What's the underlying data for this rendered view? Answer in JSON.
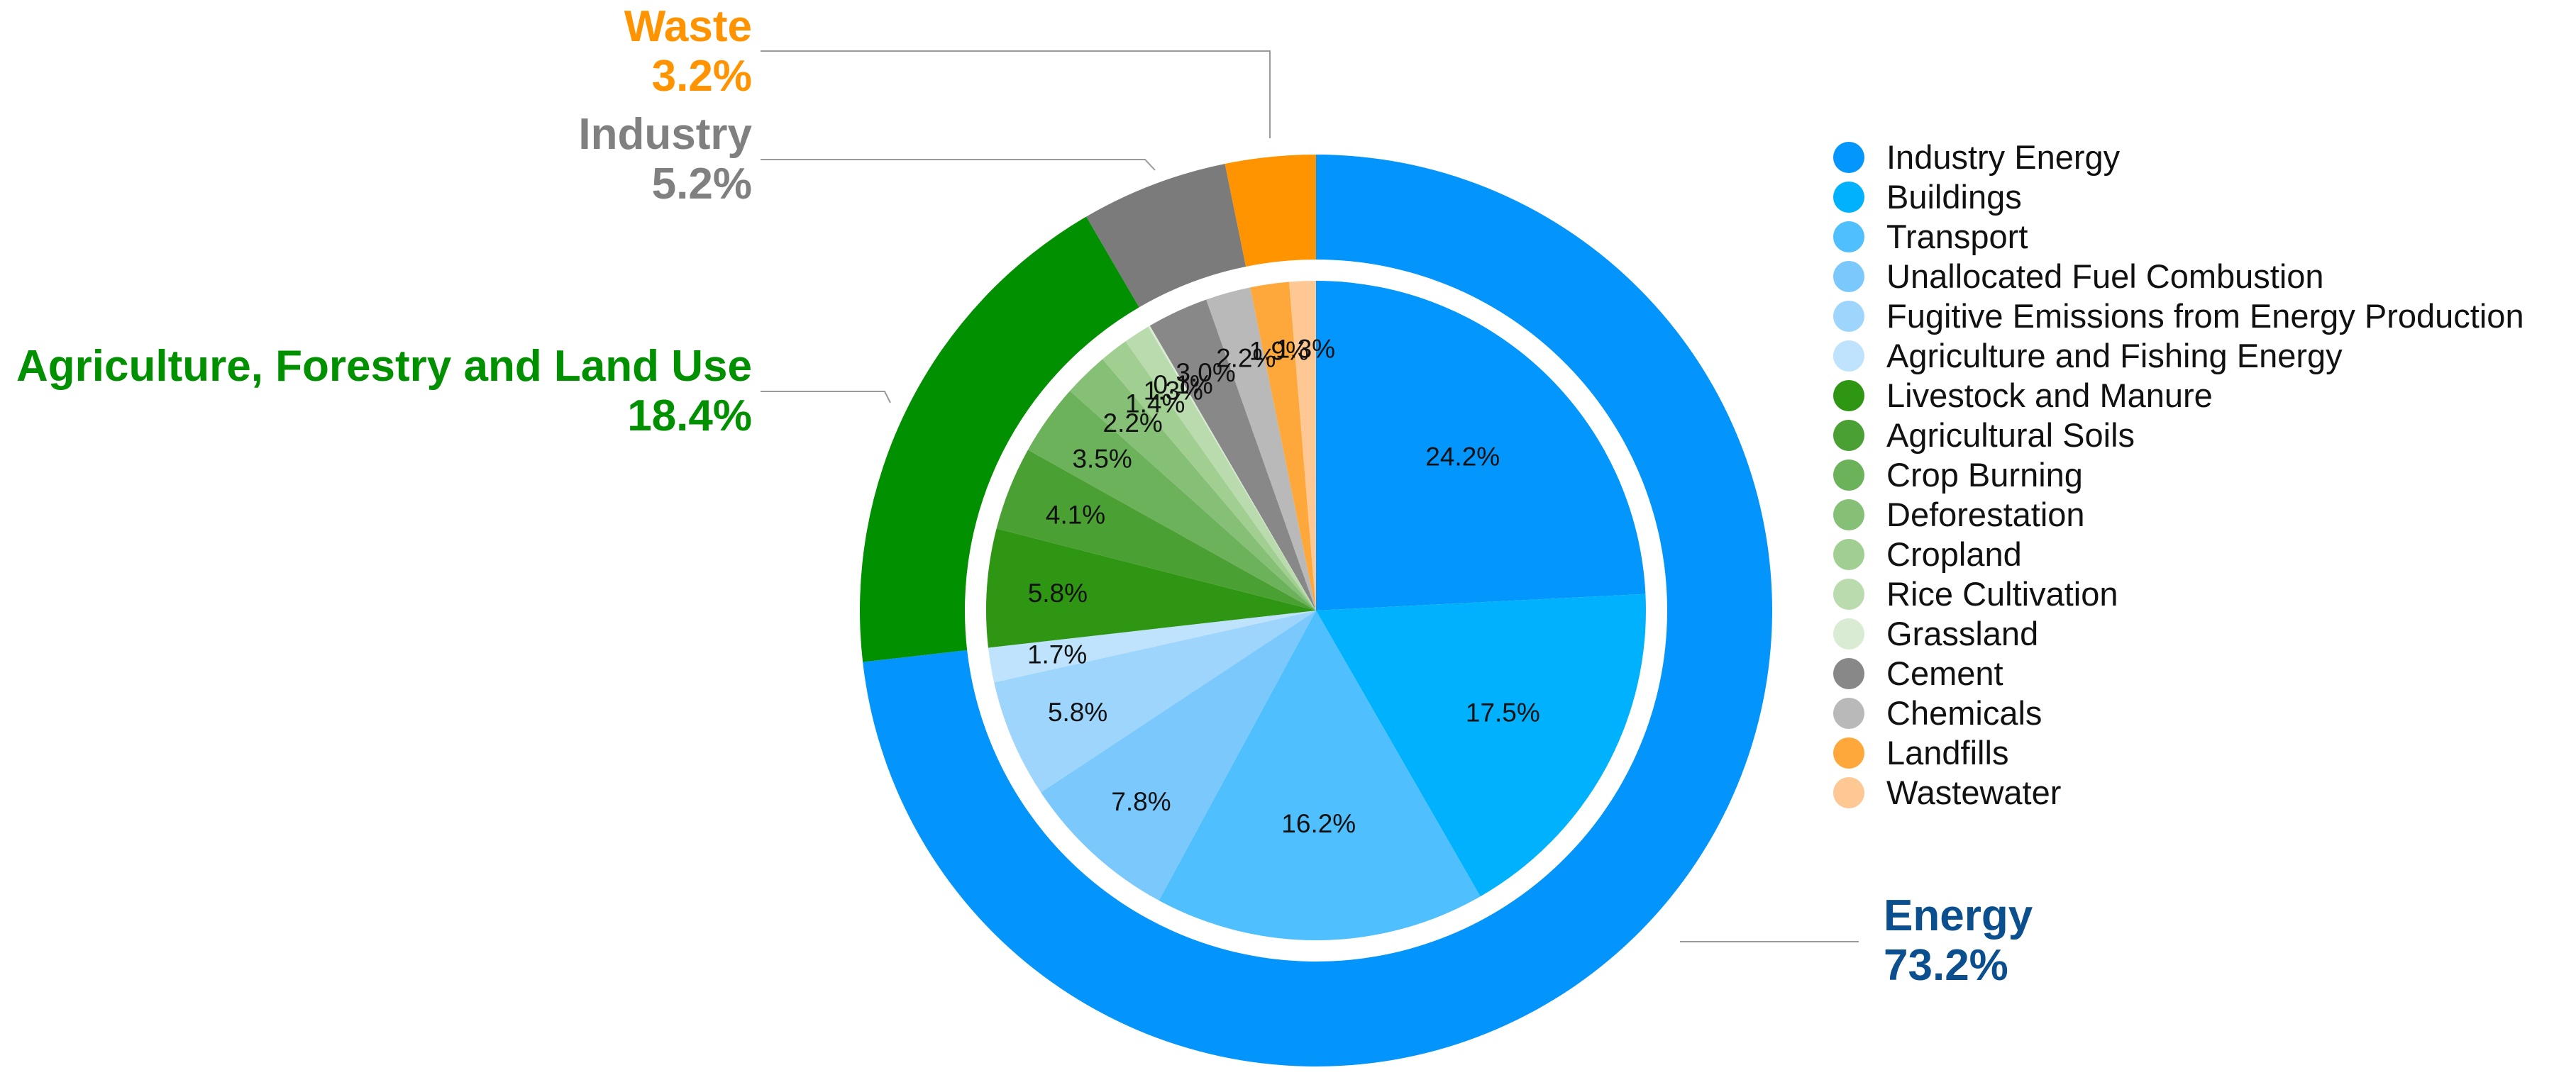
{
  "chart_data": {
    "type": "pie",
    "outer_ring": [
      {
        "name": "Energy",
        "value": 73.2,
        "label": "73.2%",
        "color": "#0394fc",
        "text_color": "#0b4f8e"
      },
      {
        "name": "Agriculture, Forestry and Land Use",
        "value": 18.4,
        "label": "18.4%",
        "color": "#009000",
        "text_color": "#009000"
      },
      {
        "name": "Industry",
        "value": 5.2,
        "label": "5.2%",
        "color": "#7b7b7b",
        "text_color": "#808080"
      },
      {
        "name": "Waste",
        "value": 3.2,
        "label": "3.2%",
        "color": "#ff9300",
        "text_color": "#ff9300"
      }
    ],
    "inner_pie": [
      {
        "name": "Industry Energy",
        "value": 24.2,
        "label": "24.2%",
        "color": "#0396fc"
      },
      {
        "name": "Buildings",
        "value": 17.5,
        "label": "17.5%",
        "color": "#00b2fd"
      },
      {
        "name": "Transport",
        "value": 16.2,
        "label": "16.2%",
        "color": "#4fbffd"
      },
      {
        "name": "Unallocated Fuel Combustion",
        "value": 7.8,
        "label": "7.8%",
        "color": "#7bc8fd"
      },
      {
        "name": "Fugitive Emissions from Energy Production",
        "value": 5.8,
        "label": "5.8%",
        "color": "#9dd5fd"
      },
      {
        "name": "Agriculture and Fishing Energy",
        "value": 1.7,
        "label": "1.7%",
        "color": "#bfe3fd"
      },
      {
        "name": "Livestock and Manure",
        "value": 5.8,
        "label": "5.8%",
        "color": "#2f9614"
      },
      {
        "name": "Agricultural Soils",
        "value": 4.1,
        "label": "4.1%",
        "color": "#4aa032"
      },
      {
        "name": "Crop Burning",
        "value": 3.5,
        "label": "3.5%",
        "color": "#6cb25b"
      },
      {
        "name": "Deforestation",
        "value": 2.2,
        "label": "2.2%",
        "color": "#86bf76"
      },
      {
        "name": "Cropland",
        "value": 1.4,
        "label": "1.4%",
        "color": "#a1cf92"
      },
      {
        "name": "Rice Cultivation",
        "value": 1.3,
        "label": "1.3%",
        "color": "#b9dbae"
      },
      {
        "name": "Grassland",
        "value": 0.1,
        "label": "0.1%",
        "color": "#d9ecd3"
      },
      {
        "name": "Cement",
        "value": 3.0,
        "label": "3.0%",
        "color": "#888888"
      },
      {
        "name": "Chemicals",
        "value": 2.2,
        "label": "2.2%",
        "color": "#b9b9b9"
      },
      {
        "name": "Landfills",
        "value": 1.9,
        "label": "1.9%",
        "color": "#fea83c"
      },
      {
        "name": "Wastewater",
        "value": 1.3,
        "label": "1.3%",
        "color": "#fec894"
      }
    ],
    "legend": {
      "placement": "right",
      "entries": [
        "Industry Energy",
        "Buildings",
        "Transport",
        "Unallocated Fuel Combustion",
        "Fugitive Emissions from Energy Production",
        "Agriculture and Fishing Energy",
        "Livestock and Manure",
        "Agricultural Soils",
        "Crop Burning",
        "Deforestation",
        "Cropland",
        "Rice Cultivation",
        "Grassland",
        "Cement",
        "Chemicals",
        "Landfills",
        "Wastewater"
      ]
    }
  }
}
